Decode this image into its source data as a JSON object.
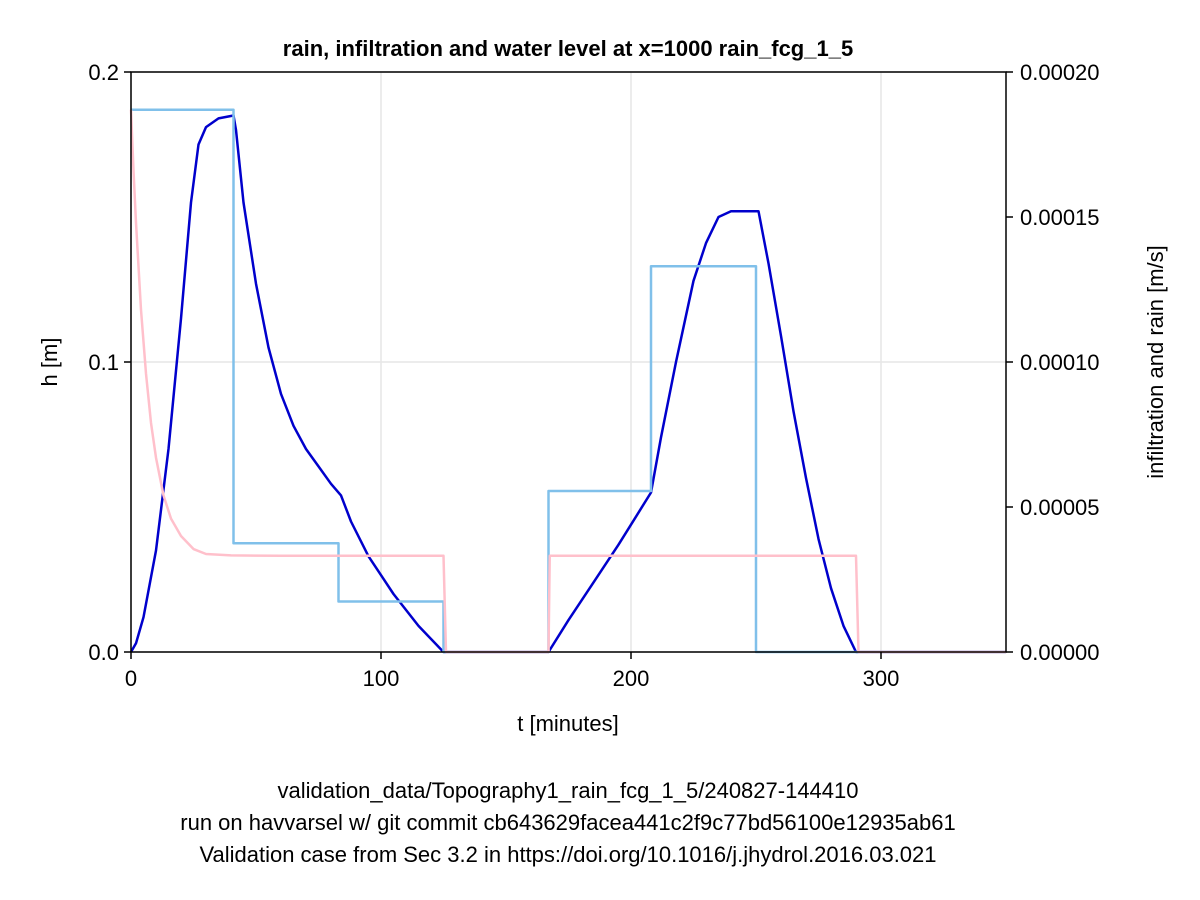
{
  "chart_data": {
    "type": "line",
    "title": "rain, infiltration and water level at x=1000 rain_fcg_1_5",
    "xlabel": "t [minutes]",
    "ylabel_left": "h [m]",
    "ylabel_right": "infiltration and rain [m/s]",
    "xlim": [
      0,
      350
    ],
    "ylim_left": [
      0,
      0.2
    ],
    "ylim_right": [
      0,
      0.0002
    ],
    "x_ticks": [
      0,
      100,
      200,
      300
    ],
    "x_tick_labels": [
      "0",
      "100",
      "200",
      "300"
    ],
    "y_left_ticks": [
      0,
      0.1,
      0.2
    ],
    "y_left_tick_labels": [
      "0.0",
      "0.1",
      "0.2"
    ],
    "y_right_ticks": [
      0,
      5e-05,
      0.0001,
      0.00015,
      0.0002
    ],
    "y_right_tick_labels": [
      "0.00000",
      "0.00005",
      "0.00010",
      "0.00015",
      "0.00020"
    ],
    "grid": true,
    "series": [
      {
        "axis": "left",
        "color": "#0000cc",
        "x": [
          0,
          2,
          5,
          10,
          15,
          20,
          24,
          27,
          30,
          35,
          41,
          42,
          45,
          50,
          55,
          60,
          65,
          70,
          75,
          80,
          84,
          88,
          95,
          105,
          115,
          125,
          130,
          140,
          150,
          160,
          167,
          175,
          185,
          195,
          208,
          212,
          218,
          225,
          230,
          235,
          240,
          245,
          251,
          255,
          260,
          265,
          270,
          275,
          280,
          285,
          290,
          300,
          320,
          350
        ],
        "y": [
          0,
          0.003,
          0.012,
          0.035,
          0.07,
          0.115,
          0.155,
          0.175,
          0.181,
          0.184,
          0.185,
          0.18,
          0.155,
          0.127,
          0.105,
          0.089,
          0.078,
          0.07,
          0.064,
          0.058,
          0.054,
          0.045,
          0.033,
          0.02,
          0.009,
          0,
          0,
          0,
          0,
          0,
          0,
          0.011,
          0.024,
          0.037,
          0.055,
          0.074,
          0.1,
          0.128,
          0.141,
          0.15,
          0.152,
          0.152,
          0.152,
          0.134,
          0.109,
          0.083,
          0.06,
          0.039,
          0.022,
          0.009,
          0,
          0,
          0,
          0
        ]
      },
      {
        "axis": "right",
        "color": "#80c0ea",
        "x": [
          0,
          41,
          41,
          83,
          83,
          125,
          125,
          167,
          167,
          208,
          208,
          250,
          250,
          350
        ],
        "y": [
          0.000187,
          0.000187,
          3.75e-05,
          3.75e-05,
          1.74e-05,
          1.74e-05,
          0,
          0,
          5.55e-05,
          5.55e-05,
          0.000133,
          0.000133,
          0,
          0
        ]
      },
      {
        "axis": "right",
        "color": "#ffc0cb",
        "x": [
          0,
          1,
          2,
          4,
          6,
          8,
          10,
          13,
          16,
          20,
          25,
          30,
          40,
          60,
          80,
          100,
          125,
          126,
          167,
          167.5,
          290,
          291,
          350
        ],
        "y": [
          0.000187,
          0.000166,
          0.000148,
          0.000118,
          9.6e-05,
          7.9e-05,
          6.7e-05,
          5.4e-05,
          4.6e-05,
          4e-05,
          3.55e-05,
          3.38e-05,
          3.33e-05,
          3.32e-05,
          3.32e-05,
          3.32e-05,
          3.32e-05,
          0,
          0,
          3.32e-05,
          3.32e-05,
          0,
          0
        ]
      }
    ]
  },
  "footer": {
    "line1": "validation_data/Topography1_rain_fcg_1_5/240827-144410",
    "line2": "run on havvarsel w/ git commit cb643629facea441c2f9c77bd56100e12935ab61",
    "line3": "Validation case from Sec 3.2 in https://doi.org/10.1016/j.jhydrol.2016.03.021"
  }
}
